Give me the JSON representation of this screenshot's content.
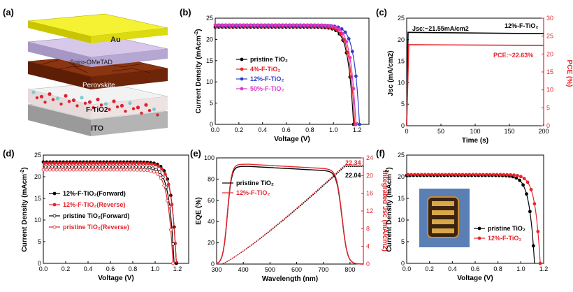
{
  "panels": {
    "a": {
      "label": "(a)",
      "layers": [
        "Au",
        "Spiro-OMeTAD",
        "Perovskite",
        "F-TiO2",
        "ITO"
      ],
      "colors": {
        "au": "#f3f12a",
        "spiro": "#c9b6e0",
        "perovskite": "#7a2a0c",
        "tio2": "#e8e8e8",
        "ito": "#bdbdbd"
      }
    },
    "b": {
      "label": "(b)",
      "chart_data": {
        "type": "line",
        "xlabel": "Voltage (V)",
        "ylabel": "Current Density (mAcm-2)",
        "xlim": [
          0.0,
          1.3
        ],
        "ylim": [
          0,
          25
        ],
        "xticks": [
          "0.0",
          "0.2",
          "0.4",
          "0.6",
          "0.8",
          "1.0",
          "1.2"
        ],
        "yticks": [
          "0",
          "5",
          "10",
          "15",
          "20",
          "25"
        ],
        "legend_position": "center-left",
        "series": [
          {
            "name": "pristine TiO2",
            "color": "#000000",
            "jsc": 22.9,
            "voc": 1.17,
            "fill": 0.86
          },
          {
            "name": "4%-F-TiO2",
            "color": "#e8232a",
            "jsc": 23.0,
            "voc": 1.18,
            "fill": 0.86
          },
          {
            "name": "12%-F-TiO2",
            "color": "#2c3ec8",
            "jsc": 23.3,
            "voc": 1.22,
            "fill": 0.87
          },
          {
            "name": "50%-F-TiO2",
            "color": "#e036c8",
            "jsc": 23.4,
            "voc": 1.19,
            "fill": 0.86
          }
        ]
      }
    },
    "c": {
      "label": "(c)",
      "chart_data": {
        "type": "line",
        "xlabel": "Time (s)",
        "ylabel_left": "Jsc (mA/cm2)",
        "ylabel_right": "PCE (%)",
        "xlim": [
          0,
          200
        ],
        "ylim_left": [
          0,
          25
        ],
        "ylim_right": [
          0,
          30
        ],
        "xticks": [
          "0",
          "50",
          "100",
          "150",
          "200"
        ],
        "yticks_left": [
          "0",
          "5",
          "10",
          "15",
          "20",
          "25"
        ],
        "yticks_right": [
          "0",
          "5",
          "10",
          "15",
          "20",
          "25",
          "30"
        ],
        "annotation_jsc": "Jsc:~21.55mA/cm2",
        "annotation_device": "12%-F-TiO2",
        "annotation_pce": "PCE:~22.63%",
        "series": [
          {
            "name": "Jsc",
            "color": "#000000",
            "start": 21.7,
            "end": 21.4
          },
          {
            "name": "PCE",
            "color": "#e8232a",
            "start": 22.6,
            "end": 22.4
          }
        ]
      }
    },
    "d": {
      "label": "(d)",
      "chart_data": {
        "type": "line",
        "xlabel": "Voltage (V)",
        "ylabel": "Current Density (mAcm-2)",
        "xlim": [
          0.0,
          1.3
        ],
        "ylim": [
          0,
          25
        ],
        "xticks": [
          "0.0",
          "0.2",
          "0.4",
          "0.6",
          "0.8",
          "1.0",
          "1.2"
        ],
        "yticks": [
          "0",
          "5",
          "10",
          "15",
          "20",
          "25"
        ],
        "legend_position": "center-left",
        "series": [
          {
            "name": "12%-F-TiO2(Forward)",
            "color": "#000000",
            "marker": "filled",
            "jsc": 23.4,
            "voc": 1.19,
            "fill": 0.86
          },
          {
            "name": "12%-F-TiO2(Reverse)",
            "color": "#e8232a",
            "marker": "filled",
            "jsc": 23.1,
            "voc": 1.19,
            "fill": 0.86
          },
          {
            "name": "pristine TiO2(Forward)",
            "color": "#000000",
            "marker": "open",
            "jsc": 22.3,
            "voc": 1.17,
            "fill": 0.85
          },
          {
            "name": "pristine TiO2(Reverse)",
            "color": "#e8232a",
            "marker": "open",
            "jsc": 21.6,
            "voc": 1.16,
            "fill": 0.84
          }
        ]
      }
    },
    "e": {
      "label": "(e)",
      "chart_data": {
        "type": "line",
        "xlabel": "Wavelength (nm)",
        "ylabel_left": "EQE (%)",
        "ylabel_right": "Integrated Jsc (mA/cm2)",
        "xlim": [
          300,
          850
        ],
        "ylim_left": [
          0,
          100
        ],
        "ylim_right": [
          0,
          24
        ],
        "xticks": [
          "300",
          "400",
          "500",
          "600",
          "700",
          "800"
        ],
        "yticks_left": [
          "0",
          "20",
          "40",
          "60",
          "80",
          "100"
        ],
        "yticks_right": [
          "0",
          "4",
          "8",
          "12",
          "16",
          "20",
          "24"
        ],
        "annotation_red": "22.34",
        "annotation_black": "22.04",
        "series": [
          {
            "name": "pristine TiO2",
            "color": "#000000",
            "integrated_final": 22.04
          },
          {
            "name": "12%-F-TiO2",
            "color": "#e8232a",
            "integrated_final": 22.34
          }
        ]
      }
    },
    "f": {
      "label": "(f)",
      "chart_data": {
        "type": "line",
        "xlabel": "Voltage (V)",
        "ylabel": "Current Density (mAcm-2)",
        "xlim": [
          0.0,
          1.2
        ],
        "ylim": [
          0,
          25
        ],
        "xticks": [
          "0.0",
          "0.2",
          "0.4",
          "0.6",
          "0.8",
          "1.0",
          "1.2"
        ],
        "yticks": [
          "0",
          "5",
          "10",
          "15",
          "20",
          "25"
        ],
        "legend_position": "lower-center",
        "series": [
          {
            "name": "pristine TiO2",
            "color": "#000000",
            "jsc": 20.3,
            "voc": 1.12,
            "fill": 0.84
          },
          {
            "name": "12%-F-TiO2",
            "color": "#e8232a",
            "jsc": 20.5,
            "voc": 1.17,
            "fill": 0.84
          }
        ]
      }
    }
  }
}
